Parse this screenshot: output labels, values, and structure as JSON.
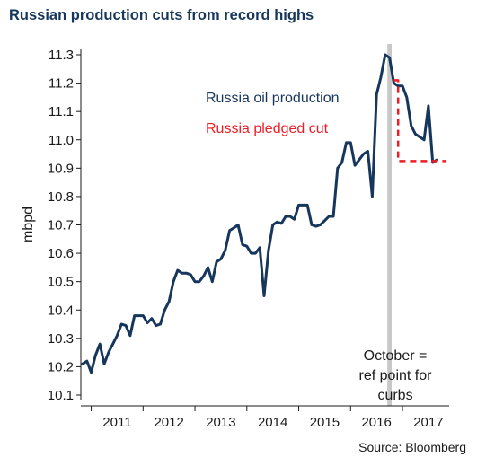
{
  "title": "Russian production cuts from record highs",
  "source": "Source: Bloomberg",
  "chart_data": {
    "type": "line",
    "ylabel": "mbpd",
    "ylim": [
      10.1,
      11.3
    ],
    "yticks": [
      10.1,
      10.2,
      10.3,
      10.4,
      10.5,
      10.6,
      10.7,
      10.8,
      10.9,
      11.0,
      11.1,
      11.2,
      11.3
    ],
    "ytick_labels": [
      "10.1",
      "10.2",
      "10.3",
      "10.4",
      "10.5",
      "10.6",
      "10.7",
      "10.8",
      "10.9",
      "11.0",
      "11.1",
      "11.2",
      "11.3"
    ],
    "xlim": [
      2010.8,
      2017.9
    ],
    "xtick_labels": [
      "2011",
      "2012",
      "2013",
      "2014",
      "2015",
      "2016",
      "2017"
    ],
    "xtick_positions": [
      2011.5,
      2012.5,
      2013.5,
      2014.5,
      2015.5,
      2016.5,
      2017.5
    ],
    "year_dividers": [
      2011,
      2012,
      2013,
      2014,
      2015,
      2016,
      2017
    ],
    "series": [
      {
        "name": "Russia oil production",
        "color": "#16365c",
        "x": [
          2010.833,
          2010.917,
          2011.0,
          2011.083,
          2011.167,
          2011.25,
          2011.333,
          2011.417,
          2011.5,
          2011.583,
          2011.667,
          2011.75,
          2011.833,
          2011.917,
          2012.0,
          2012.083,
          2012.167,
          2012.25,
          2012.333,
          2012.417,
          2012.5,
          2012.583,
          2012.667,
          2012.75,
          2012.833,
          2012.917,
          2013.0,
          2013.083,
          2013.167,
          2013.25,
          2013.333,
          2013.417,
          2013.5,
          2013.583,
          2013.667,
          2013.75,
          2013.833,
          2013.917,
          2014.0,
          2014.083,
          2014.167,
          2014.25,
          2014.333,
          2014.417,
          2014.5,
          2014.583,
          2014.667,
          2014.75,
          2014.833,
          2014.917,
          2015.0,
          2015.083,
          2015.167,
          2015.25,
          2015.333,
          2015.417,
          2015.5,
          2015.583,
          2015.667,
          2015.75,
          2015.833,
          2015.917,
          2016.0,
          2016.083,
          2016.167,
          2016.25,
          2016.333,
          2016.417,
          2016.5,
          2016.583,
          2016.667,
          2016.75,
          2016.833,
          2016.917,
          2017.0,
          2017.083,
          2017.167,
          2017.25,
          2017.333,
          2017.417,
          2017.5,
          2017.583,
          2017.667
        ],
        "y": [
          10.21,
          10.22,
          10.18,
          10.24,
          10.28,
          10.21,
          10.25,
          10.28,
          10.31,
          10.35,
          10.345,
          10.31,
          10.38,
          10.38,
          10.38,
          10.355,
          10.37,
          10.345,
          10.35,
          10.4,
          10.43,
          10.5,
          10.54,
          10.53,
          10.53,
          10.525,
          10.5,
          10.5,
          10.52,
          10.55,
          10.5,
          10.57,
          10.58,
          10.61,
          10.68,
          10.69,
          10.7,
          10.63,
          10.625,
          10.6,
          10.6,
          10.62,
          10.45,
          10.61,
          10.7,
          10.71,
          10.705,
          10.73,
          10.73,
          10.72,
          10.77,
          10.77,
          10.77,
          10.7,
          10.695,
          10.7,
          10.715,
          10.73,
          10.73,
          10.9,
          10.92,
          10.99,
          10.99,
          10.91,
          10.93,
          10.95,
          10.96,
          10.8,
          11.16,
          11.22,
          11.3,
          11.29,
          11.2,
          11.19,
          11.19,
          11.15,
          11.05,
          11.02,
          11.01,
          11.0,
          11.12,
          10.92,
          10.93
        ]
      },
      {
        "name": "Russia pledged cut",
        "color": "#ee1c25",
        "x": [
          2016.833,
          2016.917,
          2016.917,
          2017.85
        ],
        "y": [
          11.21,
          11.21,
          10.925,
          10.925
        ]
      }
    ],
    "highlight_band": {
      "x": 2016.75,
      "width_months": 1,
      "color": "#c8c8c8"
    },
    "annotation": [
      "October =",
      "ref point for",
      "curbs"
    ]
  }
}
